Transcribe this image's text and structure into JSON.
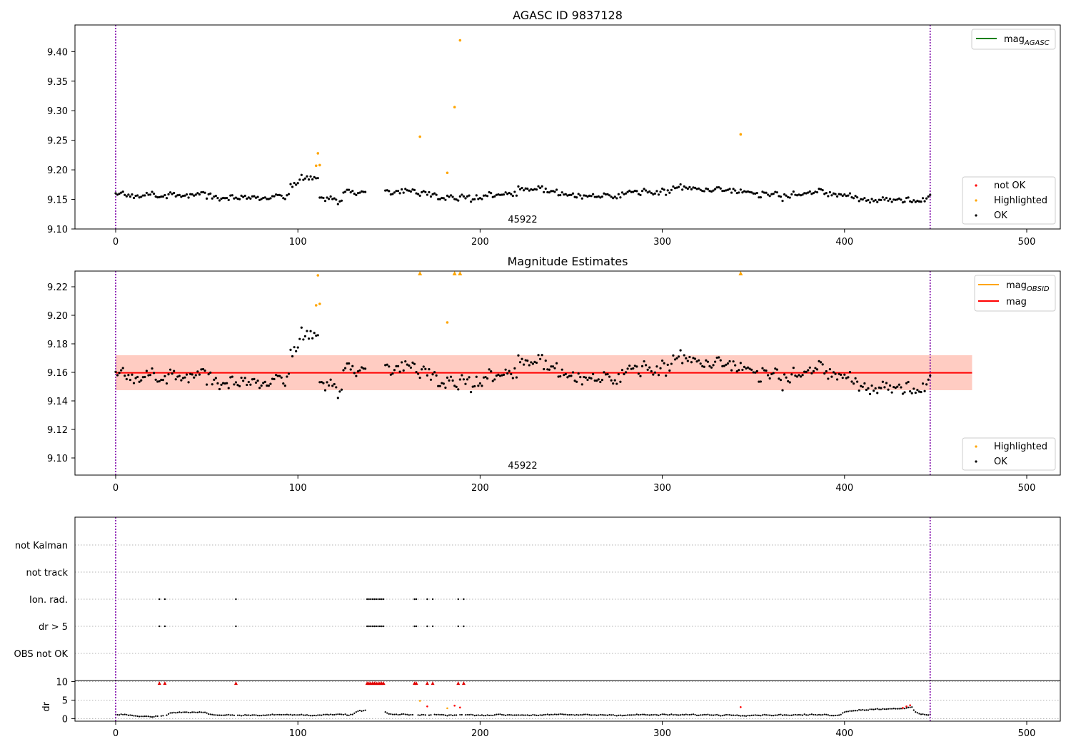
{
  "chart_data": [
    {
      "type": "scatter",
      "title": "AGASC ID 9837128",
      "xlim": [
        -22,
        520
      ],
      "ylim": [
        9.1,
        9.445
      ],
      "xticks": [
        0,
        100,
        200,
        300,
        400,
        500
      ],
      "yticks": [
        9.1,
        9.15,
        9.2,
        9.25,
        9.3,
        9.35,
        9.4
      ],
      "vlines": [
        0,
        447
      ],
      "annotation": {
        "text": "45922",
        "x": 223,
        "y": 9.112
      },
      "legend_upper": [
        {
          "label": "mag",
          "sub": "AGASC",
          "color": "#008000"
        }
      ],
      "legend_lower": [
        {
          "label": "not OK",
          "color": "#ff0000"
        },
        {
          "label": "Highlighted",
          "color": "#ffa500"
        },
        {
          "label": "OK",
          "color": "#000000"
        }
      ],
      "highlighted": [
        [
          110,
          9.207
        ],
        [
          111,
          9.228
        ],
        [
          112,
          9.208
        ],
        [
          167,
          9.256
        ],
        [
          182,
          9.195
        ],
        [
          186,
          9.306
        ],
        [
          189,
          9.419
        ],
        [
          343,
          9.26
        ]
      ]
    },
    {
      "type": "scatter",
      "title": "Magnitude Estimates",
      "xlim": [
        -22,
        520
      ],
      "ylim": [
        9.088,
        9.231
      ],
      "xticks": [
        0,
        100,
        200,
        300,
        400,
        500
      ],
      "yticks": [
        9.1,
        9.12,
        9.14,
        9.16,
        9.18,
        9.2,
        9.22
      ],
      "vlines": [
        0,
        447
      ],
      "mag_line": {
        "value": 9.1597,
        "x": [
          0,
          470
        ],
        "color": "#ff0000"
      },
      "bands": [
        {
          "lo": 9.1475,
          "hi": 9.172,
          "x": [
            0,
            470
          ],
          "color": "#ffc0cb"
        },
        {
          "lo": 9.1475,
          "hi": 9.172,
          "x": [
            0,
            470
          ],
          "color": "#ffa07a"
        }
      ],
      "annotation": {
        "text": "45922",
        "x": 223,
        "y": 9.093
      },
      "legend_upper": [
        {
          "label": "mag",
          "sub": "OBSID",
          "color": "#ffa500"
        },
        {
          "label": "mag",
          "sub": "",
          "color": "#ff0000"
        }
      ],
      "legend_lower": [
        {
          "label": "Highlighted",
          "color": "#ffa500"
        },
        {
          "label": "OK",
          "color": "#000000"
        }
      ],
      "highlighted": [
        [
          110,
          9.207
        ],
        [
          111,
          9.228
        ],
        [
          112,
          9.208
        ],
        [
          182,
          9.195
        ]
      ],
      "clipped_highlighted": [
        167,
        186,
        189,
        343
      ]
    },
    {
      "type": "scatter",
      "xlim": [
        -22,
        520
      ],
      "xticks": [
        0,
        100,
        200,
        300,
        400,
        500
      ],
      "vlines": [
        0,
        447
      ],
      "flag_rows": [
        "not Kalman",
        "not track",
        "Ion. rad.",
        "dr > 5",
        "OBS not OK"
      ],
      "flag_points": [
        24,
        27,
        66,
        138,
        139,
        140,
        141,
        142,
        143,
        144,
        145,
        146,
        147,
        164,
        165,
        171,
        174,
        188,
        191
      ],
      "dr": {
        "ylabel": "dr",
        "yticks": [
          0,
          5,
          10
        ],
        "ylim": [
          -0.7,
          10.3
        ],
        "over_limit": [
          24,
          27,
          66,
          138,
          139,
          140,
          141,
          142,
          143,
          144,
          145,
          146,
          147,
          164,
          165,
          171,
          174,
          188,
          191
        ],
        "red_points": [
          [
            171,
            3.3
          ],
          [
            186,
            3.5
          ],
          [
            189,
            3.0
          ],
          [
            343,
            3.1
          ],
          [
            432,
            2.9
          ],
          [
            434,
            3.3
          ],
          [
            436,
            3.6
          ]
        ],
        "orange_points": [
          [
            167,
            4.8
          ],
          [
            182,
            2.8
          ]
        ]
      }
    }
  ]
}
